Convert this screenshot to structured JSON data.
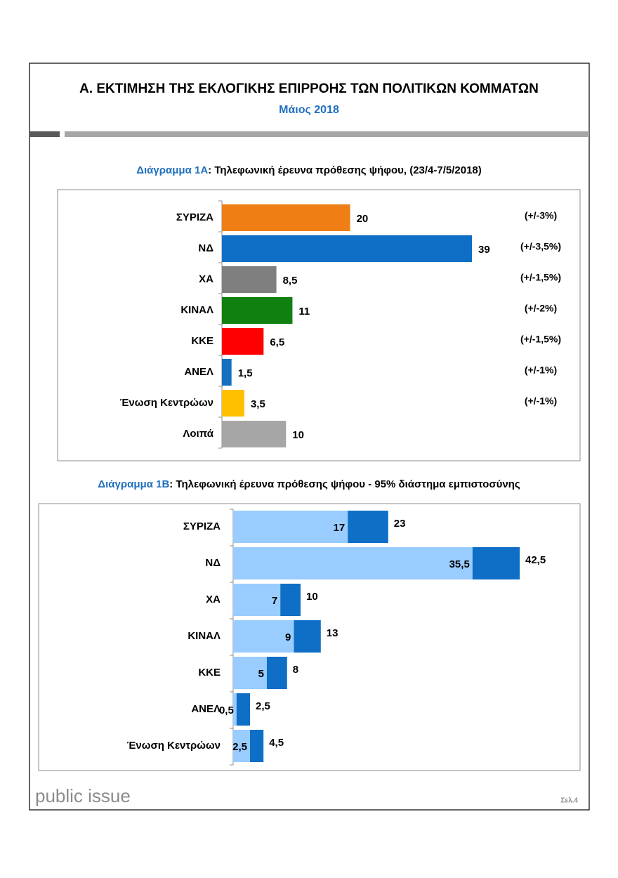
{
  "header": {
    "title": "Α. ΕΚΤΙΜΗΣΗ ΤΗΣ ΕΚΛΟΓΙΚΗΣ ΕΠΙΡΡΟΗΣ ΤΩΝ ΠΟΛΙΤΙΚΩΝ ΚΟΜΜΑΤΩΝ",
    "subtitle": "Μάιος 2018"
  },
  "chart_data": [
    {
      "type": "bar",
      "label": "Διάγραμμα 1Α",
      "title": ": Τηλεφωνική έρευνα πρόθεσης ψήφου,  (23/4-7/5/2018)",
      "categories": [
        "ΣΥΡΙΖΑ",
        "ΝΔ",
        "ΧΑ",
        "ΚΙΝΑΛ",
        "ΚΚΕ",
        "ΑΝΕΛ",
        "Ένωση Κεντρώων",
        "Λοιπά"
      ],
      "values": [
        20,
        39,
        8.5,
        11,
        6.5,
        1.5,
        3.5,
        10
      ],
      "value_labels": [
        "20",
        "39",
        "8,5",
        "11",
        "6,5",
        "1,5",
        "3,5",
        "10"
      ],
      "colors": [
        "#ef7f14",
        "#0f6fc6",
        "#7f7f7f",
        "#108010",
        "#ff0000",
        "#1470c0",
        "#ffc000",
        "#a6a6a6"
      ],
      "margins": [
        "(+/-3%)",
        "(+/-3,5%)",
        "(+/-1,5%)",
        "(+/-2%)",
        "(+/-1,5%)",
        "(+/-1%)",
        "(+/-1%)",
        null
      ]
    },
    {
      "type": "range",
      "label": "Διάγραμμα 1Β",
      "title": ": Τηλεφωνική έρευνα πρόθεσης ψήφου - 95% διάστημα εμπιστοσύνης",
      "categories": [
        "ΣΥΡΙΖΑ",
        "ΝΔ",
        "ΧΑ",
        "ΚΙΝΑΛ",
        "ΚΚΕ",
        "ΑΝΕΛ",
        "Ένωση Κεντρώων"
      ],
      "low": [
        17,
        35.5,
        7,
        9,
        5,
        0.5,
        2.5
      ],
      "low_labels": [
        "17",
        "35,5",
        "7",
        "9",
        "5",
        "0,5",
        "2,5"
      ],
      "high": [
        23,
        42.5,
        10,
        13,
        8,
        2.5,
        4.5
      ],
      "high_labels": [
        "23",
        "42,5",
        "10",
        "13",
        "8",
        "2,5",
        "4,5"
      ],
      "low_color": "#99ccff",
      "high_color": "#0f6fc6"
    }
  ],
  "footer": {
    "brand": "public issue",
    "page": "Σελ.4"
  }
}
